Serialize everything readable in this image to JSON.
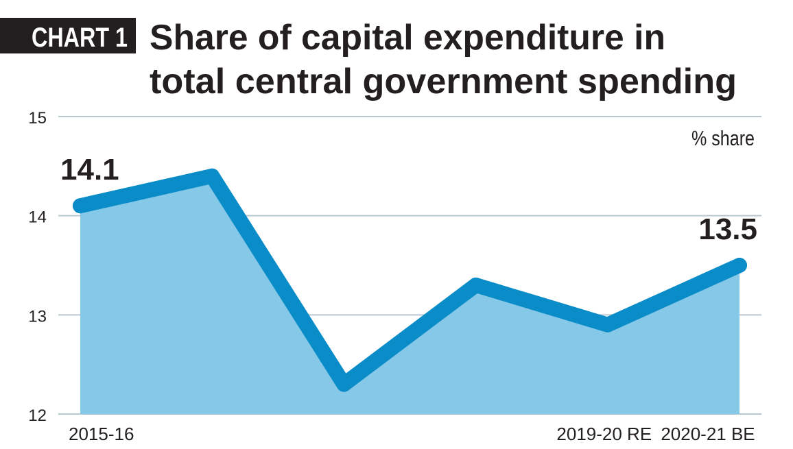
{
  "header": {
    "label": "CHART 1",
    "title_line1": "Share of capital expenditure in",
    "title_line2": "total central government spending"
  },
  "colors": {
    "line": "#0a8cc8",
    "fill": "#86c8e8",
    "grid": "#b8c8d0",
    "text": "#231f20",
    "label_bg": "#231f20"
  },
  "chart_data": {
    "type": "area",
    "title": "Share of capital expenditure in total central government spending",
    "unit_label": "% share",
    "ylim": [
      12,
      15
    ],
    "yticks": [
      12,
      13,
      14,
      15
    ],
    "grid": true,
    "x_tick_labels": [
      "2015-16",
      "",
      "",
      "",
      "2019-20 RE",
      "2020-21 BE"
    ],
    "series": [
      {
        "values": [
          14.1,
          14.4,
          12.3,
          13.3,
          12.9,
          13.5
        ]
      }
    ],
    "annotations": [
      {
        "index": 0,
        "text": "14.1"
      },
      {
        "index": 5,
        "text": "13.5"
      }
    ]
  }
}
